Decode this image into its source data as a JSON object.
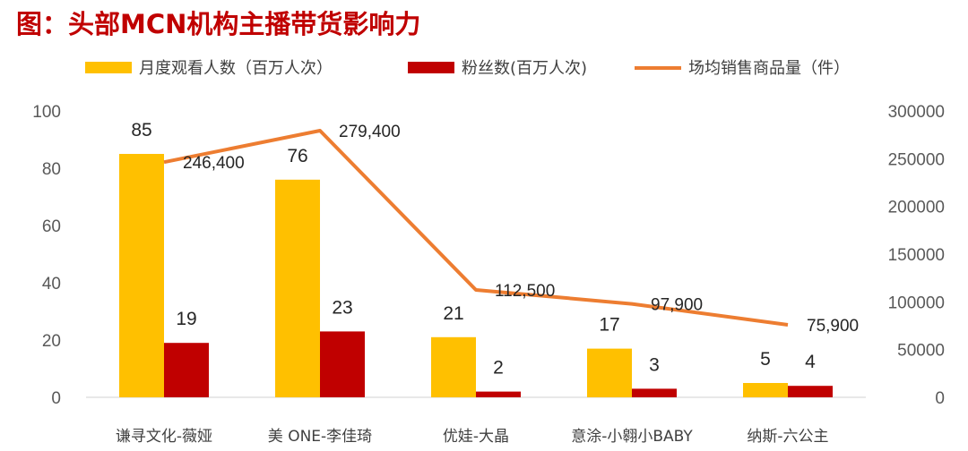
{
  "title": "图：头部MCN机构主播带货影响力",
  "chart_data": {
    "type": "bar",
    "categories": [
      "谦寻文化-薇娅",
      "美 ONE-李佳琦",
      "优娃-大晶",
      "意涂-小翱小BABY",
      "纳斯-六公主"
    ],
    "series": [
      {
        "name": "月度观看人数（百万人次）",
        "type": "bar",
        "axis": "left",
        "color": "#ffc000",
        "values": [
          85,
          76,
          21,
          17,
          5
        ]
      },
      {
        "name": "粉丝数(百万人次)",
        "type": "bar",
        "axis": "left",
        "color": "#c00000",
        "values": [
          19,
          23,
          2,
          3,
          4
        ]
      },
      {
        "name": "场均销售商品量（件）",
        "type": "line",
        "axis": "right",
        "color": "#ed7d31",
        "values": [
          246400,
          279400,
          112500,
          97900,
          75900
        ],
        "labels": [
          "246,400",
          "279,400",
          "112,500",
          "97,900",
          "75,900"
        ]
      }
    ],
    "y_left": {
      "min": 0,
      "max": 100,
      "ticks": [
        "0",
        "20",
        "40",
        "60",
        "80",
        "100"
      ]
    },
    "y_right": {
      "min": 0,
      "max": 300000,
      "ticks": [
        "0",
        "50000",
        "100000",
        "150000",
        "200000",
        "250000",
        "300000"
      ]
    },
    "grid": false,
    "legend_position": "top"
  }
}
